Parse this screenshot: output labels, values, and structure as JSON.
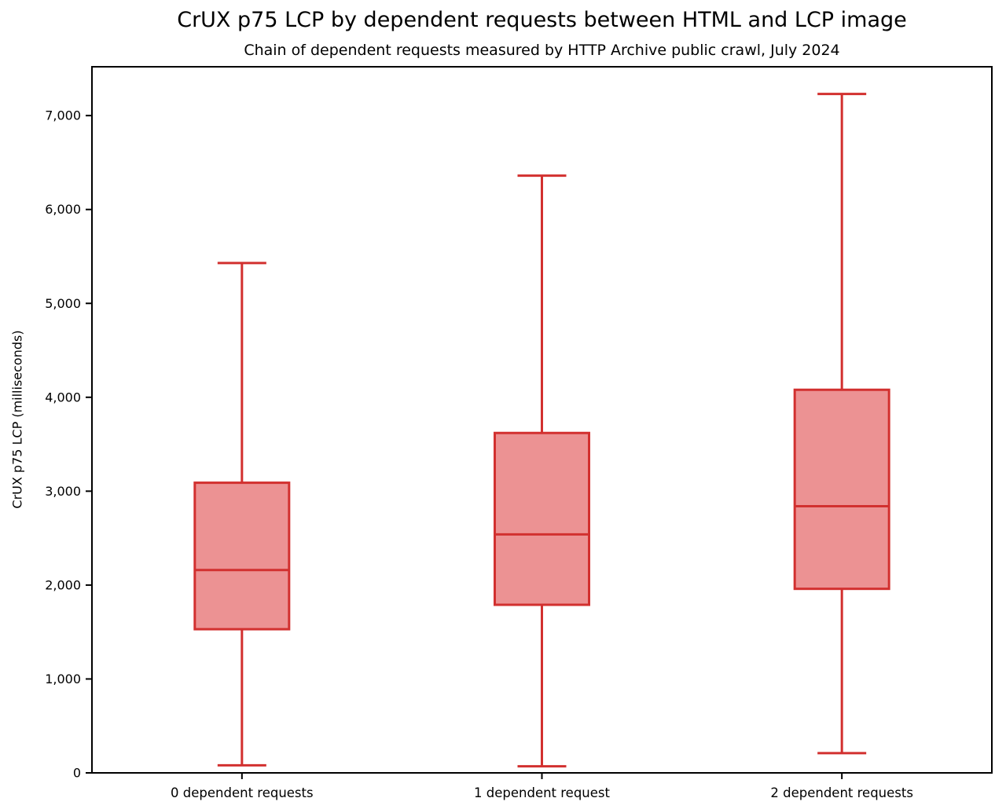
{
  "chart_data": {
    "type": "boxplot",
    "title": "CrUX p75 LCP by dependent requests between HTML and LCP image",
    "subtitle": "Chain of dependent requests measured by HTTP Archive public crawl, July 2024",
    "ylabel": "CrUX p75 LCP (milliseconds)",
    "xlabel": "",
    "ylim": [
      0,
      7520
    ],
    "yticks": [
      0,
      1000,
      2000,
      3000,
      4000,
      5000,
      6000,
      7000
    ],
    "grid": false,
    "legend": "none",
    "categories": [
      "0 dependent requests",
      "1 dependent request",
      "2 dependent requests"
    ],
    "series": [
      {
        "name": "0 dependent requests",
        "whisker_low": 80,
        "q1": 1530,
        "median": 2160,
        "q3": 3090,
        "whisker_high": 5430
      },
      {
        "name": "1 dependent request",
        "whisker_low": 70,
        "q1": 1790,
        "median": 2540,
        "q3": 3620,
        "whisker_high": 6360
      },
      {
        "name": "2 dependent requests",
        "whisker_low": 210,
        "q1": 1960,
        "median": 2840,
        "q3": 4080,
        "whisker_high": 7230
      }
    ],
    "colors": {
      "box_fill": "#ec9293",
      "box_stroke": "#d2302f",
      "axis": "#000000"
    }
  }
}
